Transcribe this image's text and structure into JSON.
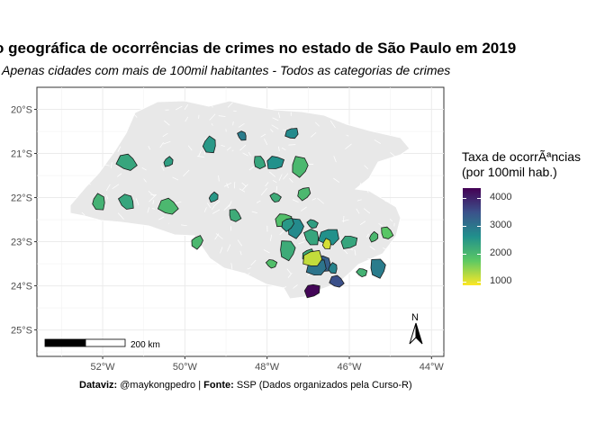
{
  "title": "o geográfica de ocorrências de crimes no estado de São Paulo em 2019",
  "subtitle": "Apenas cidades com mais de 100mil habitantes - Todos as categorias de crimes",
  "caption": {
    "dataviz_label": "Dataviz:",
    "dataviz_value": " @maykongpedro | ",
    "source_label": "Fonte:",
    "source_value": " SSP (Dados organizados pela Curso-R)"
  },
  "legend": {
    "title_line1": "Taxa de ocorrÃªncias",
    "title_line2": "(por 100mil hab.)",
    "ticks": [
      {
        "label": "4000",
        "value": 4000
      },
      {
        "label": "3000",
        "value": 3000
      },
      {
        "label": "2000",
        "value": 2000
      },
      {
        "label": "1000",
        "value": 1000
      }
    ],
    "range": [
      880,
      4350
    ],
    "colors": [
      "#440154",
      "#3b528b",
      "#21908c",
      "#5dc963",
      "#fde725"
    ]
  },
  "chart_data": {
    "type": "choropleth",
    "xlim": [
      -53.6,
      -43.7
    ],
    "ylim": [
      -25.6,
      -19.5
    ],
    "x_ticks": [
      {
        "value": -52,
        "label": "52°W"
      },
      {
        "value": -50,
        "label": "50°W"
      },
      {
        "value": -48,
        "label": "48°W"
      },
      {
        "value": -46,
        "label": "46°W"
      },
      {
        "value": -44,
        "label": "44°W"
      }
    ],
    "y_ticks": [
      {
        "value": -20,
        "label": "20°S"
      },
      {
        "value": -21,
        "label": "21°S"
      },
      {
        "value": -22,
        "label": "22°S"
      },
      {
        "value": -23,
        "label": "23°S"
      },
      {
        "value": -24,
        "label": "24°S"
      },
      {
        "value": -25,
        "label": "25°S"
      }
    ],
    "grid": true,
    "scale_bar_label": "200 km",
    "north_label": "N",
    "cities": [
      {
        "lon": -48.6,
        "lat": -20.6,
        "value": 2900
      },
      {
        "lon": -47.4,
        "lat": -20.55,
        "value": 2700
      },
      {
        "lon": -49.4,
        "lat": -20.8,
        "value": 2500
      },
      {
        "lon": -51.4,
        "lat": -21.2,
        "value": 2300
      },
      {
        "lon": -50.4,
        "lat": -21.2,
        "value": 2400
      },
      {
        "lon": -48.2,
        "lat": -21.2,
        "value": 2300
      },
      {
        "lon": -47.8,
        "lat": -21.2,
        "value": 2600
      },
      {
        "lon": -47.2,
        "lat": -21.3,
        "value": 2000
      },
      {
        "lon": -47.8,
        "lat": -22.0,
        "value": 2200
      },
      {
        "lon": -47.1,
        "lat": -21.9,
        "value": 2000
      },
      {
        "lon": -52.1,
        "lat": -22.1,
        "value": 2100
      },
      {
        "lon": -50.4,
        "lat": -22.2,
        "value": 2000
      },
      {
        "lon": -49.3,
        "lat": -22.0,
        "value": 2500
      },
      {
        "lon": -48.8,
        "lat": -22.4,
        "value": 2200
      },
      {
        "lon": -47.6,
        "lat": -22.5,
        "value": 1900
      },
      {
        "lon": -47.3,
        "lat": -22.7,
        "value": 2700
      },
      {
        "lon": -46.9,
        "lat": -22.6,
        "value": 2400
      },
      {
        "lon": -47.5,
        "lat": -22.6,
        "value": 2500
      },
      {
        "lon": -46.9,
        "lat": -22.9,
        "value": 2300
      },
      {
        "lon": -46.5,
        "lat": -22.9,
        "value": 2600
      },
      {
        "lon": -45.4,
        "lat": -22.9,
        "value": 2000
      },
      {
        "lon": -45.1,
        "lat": -22.8,
        "value": 1800
      },
      {
        "lon": -46.0,
        "lat": -23.0,
        "value": 2300
      },
      {
        "lon": -47.5,
        "lat": -23.2,
        "value": 2200
      },
      {
        "lon": -47.9,
        "lat": -23.5,
        "value": 1900
      },
      {
        "lon": -47.0,
        "lat": -23.3,
        "value": 2200
      },
      {
        "lon": -46.6,
        "lat": -23.5,
        "value": 3300
      },
      {
        "lon": -46.8,
        "lat": -23.6,
        "value": 3000
      },
      {
        "lon": -46.4,
        "lat": -23.6,
        "value": 2800
      },
      {
        "lon": -46.3,
        "lat": -23.9,
        "value": 3500
      },
      {
        "lon": -46.9,
        "lat": -24.1,
        "value": 4300
      },
      {
        "lon": -45.3,
        "lat": -23.6,
        "value": 2900
      },
      {
        "lon": -45.7,
        "lat": -23.7,
        "value": 2100
      },
      {
        "lon": -49.7,
        "lat": -23.0,
        "value": 2000
      },
      {
        "lon": -51.4,
        "lat": -22.1,
        "value": 2300
      },
      {
        "lon": -46.9,
        "lat": -23.4,
        "value": 1200
      },
      {
        "lon": -46.55,
        "lat": -23.05,
        "value": 1100
      }
    ]
  }
}
